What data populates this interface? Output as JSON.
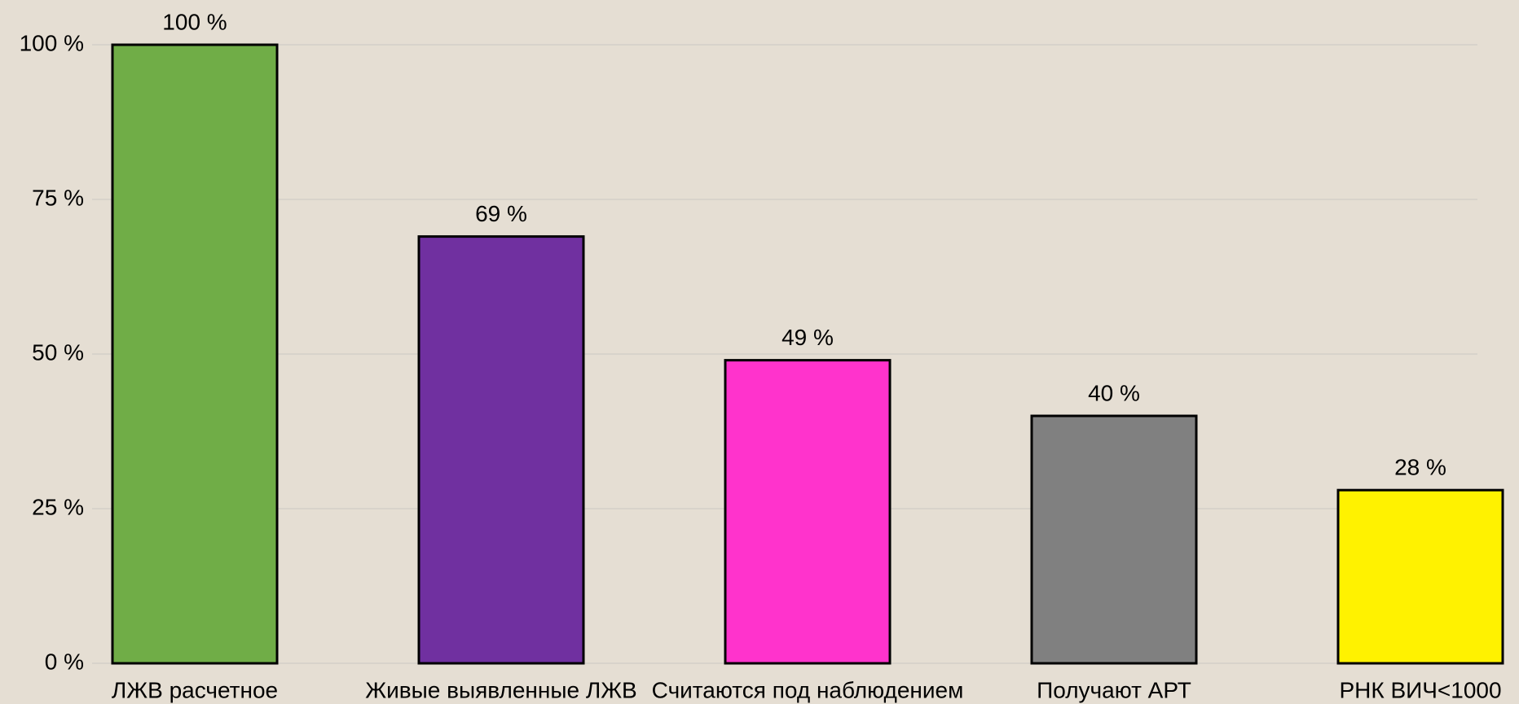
{
  "chart_data": {
    "type": "bar",
    "categories": [
      "ЛЖВ расчетное",
      "Живые выявленные ЛЖВ",
      "Считаются под наблюдением",
      "Получают АРТ",
      "РНК ВИЧ<1000"
    ],
    "values": [
      100,
      69,
      49,
      40,
      28
    ],
    "value_labels": [
      "100 %",
      "69 %",
      "49 %",
      "40 %",
      "28 %"
    ],
    "colors": [
      "#70ad47",
      "#7030a0",
      "#ff33cc",
      "#808080",
      "#fff200"
    ],
    "ylim": [
      0,
      100
    ],
    "yticks": [
      {
        "value": 0,
        "label": "0 %"
      },
      {
        "value": 25,
        "label": "25 %"
      },
      {
        "value": 50,
        "label": "50 %"
      },
      {
        "value": 75,
        "label": "75 %"
      },
      {
        "value": 100,
        "label": "100 %"
      }
    ],
    "grid": true
  }
}
